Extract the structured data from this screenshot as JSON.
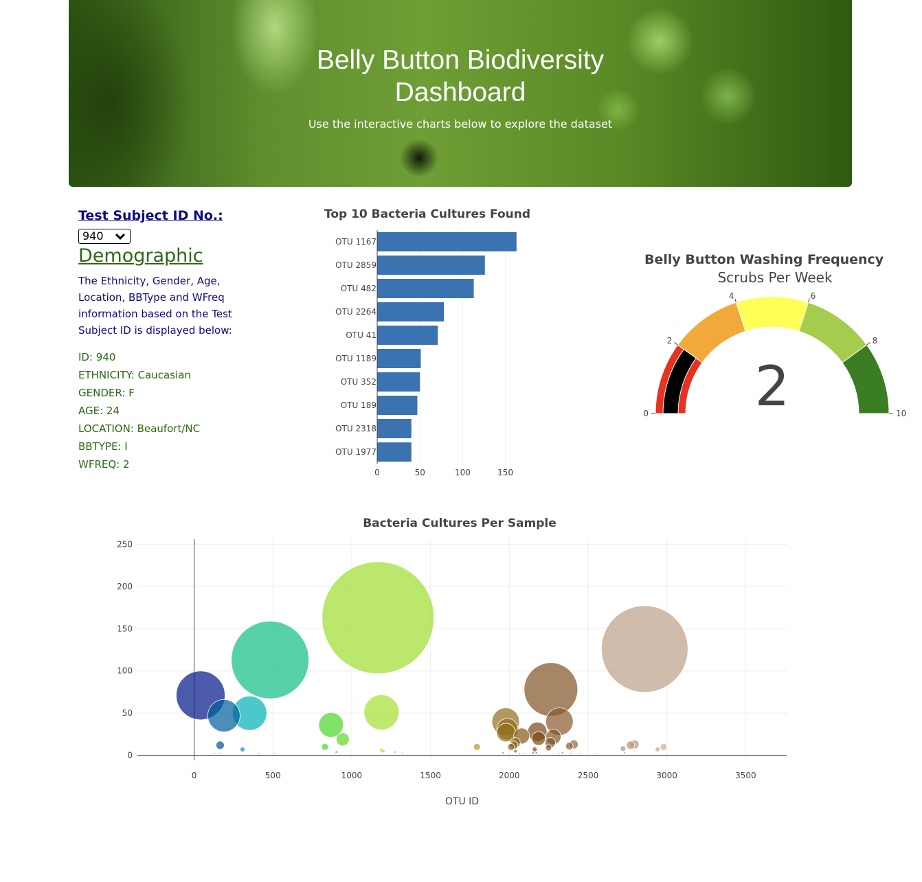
{
  "header": {
    "title_line1": "Belly Button Biodiversity",
    "title_line2": "Dashboard",
    "subtitle": "Use the interactive charts below to explore the dataset"
  },
  "sidebar": {
    "subject_label": "Test Subject ID No.:",
    "selected_id": "940",
    "demographic_title": "Demographic",
    "description": "The Ethnicity, Gender, Age, Location, BBType and WFreq information based on the Test Subject ID is displayed below:",
    "info": [
      "ID: 940",
      "ETHNICITY: Caucasian",
      "GENDER: F",
      "AGE: 24",
      "LOCATION: Beaufort/NC",
      "BBTYPE: I",
      "WFREQ: 2"
    ]
  },
  "colors": {
    "bar": "#3b73b0",
    "gauge_needle": "#000000",
    "text_dark": "#444444"
  },
  "chart_data": [
    {
      "type": "bar",
      "orientation": "horizontal",
      "title": "Top 10 Bacteria Cultures Found",
      "categories": [
        "OTU 1167",
        "OTU 2859",
        "OTU 482",
        "OTU 2264",
        "OTU 41",
        "OTU 1189",
        "OTU 352",
        "OTU 189",
        "OTU 2318",
        "OTU 1977"
      ],
      "values": [
        163,
        126,
        113,
        78,
        71,
        51,
        50,
        47,
        40,
        40
      ],
      "xticks": [
        0,
        50,
        100,
        150
      ],
      "xlim": [
        0,
        172
      ]
    },
    {
      "type": "gauge",
      "title": "Belly Button Washing Frequency",
      "subtitle": "Scrubs Per Week",
      "value": 2,
      "range": [
        0,
        10
      ],
      "ticks": [
        0,
        2,
        4,
        6,
        8,
        10
      ],
      "steps": [
        {
          "range": [
            0,
            2
          ],
          "color": "#e6321e"
        },
        {
          "range": [
            2,
            4
          ],
          "color": "#f2a93b"
        },
        {
          "range": [
            4,
            6
          ],
          "color": "#ffff55"
        },
        {
          "range": [
            6,
            8
          ],
          "color": "#a6cc4e"
        },
        {
          "range": [
            8,
            10
          ],
          "color": "#3a7d22"
        }
      ]
    },
    {
      "type": "scatter",
      "title": "Bacteria Cultures Per Sample",
      "xlabel": "OTU ID",
      "xticks": [
        0,
        500,
        1000,
        1500,
        2000,
        2500,
        3000,
        3500
      ],
      "yticks": [
        0,
        50,
        100,
        150,
        200,
        250
      ],
      "xlim": [
        -360,
        3760
      ],
      "ylim": [
        -6,
        256
      ],
      "points": [
        {
          "x": 41,
          "y": 71
        },
        {
          "x": 189,
          "y": 47
        },
        {
          "x": 352,
          "y": 50
        },
        {
          "x": 482,
          "y": 113
        },
        {
          "x": 1167,
          "y": 163
        },
        {
          "x": 1189,
          "y": 51
        },
        {
          "x": 2264,
          "y": 78
        },
        {
          "x": 2859,
          "y": 126
        },
        {
          "x": 1977,
          "y": 40
        },
        {
          "x": 2318,
          "y": 40
        },
        {
          "x": 869,
          "y": 36
        },
        {
          "x": 943,
          "y": 19
        },
        {
          "x": 1979,
          "y": 27
        },
        {
          "x": 1988,
          "y": 31
        },
        {
          "x": 2078,
          "y": 23
        },
        {
          "x": 2178,
          "y": 28
        },
        {
          "x": 2186,
          "y": 20
        },
        {
          "x": 2280,
          "y": 22
        },
        {
          "x": 2260,
          "y": 15
        },
        {
          "x": 2037,
          "y": 15
        },
        {
          "x": 165,
          "y": 12
        },
        {
          "x": 307,
          "y": 7
        },
        {
          "x": 830,
          "y": 10
        },
        {
          "x": 1795,
          "y": 10
        },
        {
          "x": 2011,
          "y": 10
        },
        {
          "x": 2409,
          "y": 13
        },
        {
          "x": 2381,
          "y": 11
        },
        {
          "x": 2795,
          "y": 13
        },
        {
          "x": 2769,
          "y": 12
        },
        {
          "x": 2979,
          "y": 10
        },
        {
          "x": 2722,
          "y": 8
        },
        {
          "x": 2941,
          "y": 7
        },
        {
          "x": 2249,
          "y": 9
        },
        {
          "x": 2039,
          "y": 5
        },
        {
          "x": 2161,
          "y": 7
        },
        {
          "x": 2028,
          "y": 12
        },
        {
          "x": 1189,
          "y": 6
        },
        {
          "x": 1200,
          "y": 5
        },
        {
          "x": 1275,
          "y": 4
        },
        {
          "x": 2171,
          "y": 3
        },
        {
          "x": 1960,
          "y": 3
        },
        {
          "x": 2338,
          "y": 3
        },
        {
          "x": 2732,
          "y": 3
        },
        {
          "x": 2151,
          "y": 3
        },
        {
          "x": 903,
          "y": 4
        },
        {
          "x": 128,
          "y": 2
        },
        {
          "x": 164,
          "y": 2
        },
        {
          "x": 411,
          "y": 2
        },
        {
          "x": 508,
          "y": 2
        },
        {
          "x": 1321,
          "y": 3
        },
        {
          "x": 2316,
          "y": 2
        },
        {
          "x": 2065,
          "y": 2
        },
        {
          "x": 2390,
          "y": 2
        },
        {
          "x": 2090,
          "y": 2
        },
        {
          "x": 2455,
          "y": 2
        },
        {
          "x": 2550,
          "y": 2
        }
      ]
    }
  ]
}
